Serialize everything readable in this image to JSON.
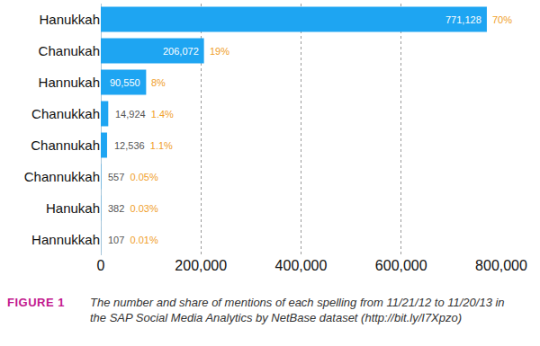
{
  "chart_data": {
    "type": "bar",
    "orientation": "horizontal",
    "categories": [
      "Hanukkah",
      "Chanukah",
      "Hannukah",
      "Chanukkah",
      "Channukah",
      "Channukkah",
      "Hanukah",
      "Hannukkah"
    ],
    "values": [
      771128,
      206072,
      90550,
      14924,
      12536,
      557,
      382,
      107
    ],
    "value_labels": [
      "771,128",
      "206,072",
      "90,550",
      "14,924",
      "12,536",
      "557",
      "382",
      "107"
    ],
    "shares": [
      70,
      19,
      8,
      1.4,
      1.1,
      0.05,
      0.03,
      0.01
    ],
    "share_labels": [
      "70%",
      "19%",
      "8%",
      "1.4%",
      "1.1%",
      "0.05%",
      "0.03%",
      "0.01%"
    ],
    "color": "#1ea5f2",
    "xlim": [
      0,
      800000
    ],
    "xticks": [
      0,
      {
        "value": 200000,
        "label": "200,000"
      },
      {
        "value": 400000,
        "label": "400,000"
      },
      {
        "value": 600000,
        "label": "600,000"
      },
      {
        "value": 800000,
        "label": "800,000"
      }
    ],
    "grid": true,
    "data_labels": true,
    "figure_label": "FIGURE 1",
    "caption": "The number and share of mentions of each spelling from 11/21/12 to 11/20/13 in the SAP Social Media Analytics by NetBase dataset (http://bit.ly/I7Xpzo)"
  }
}
